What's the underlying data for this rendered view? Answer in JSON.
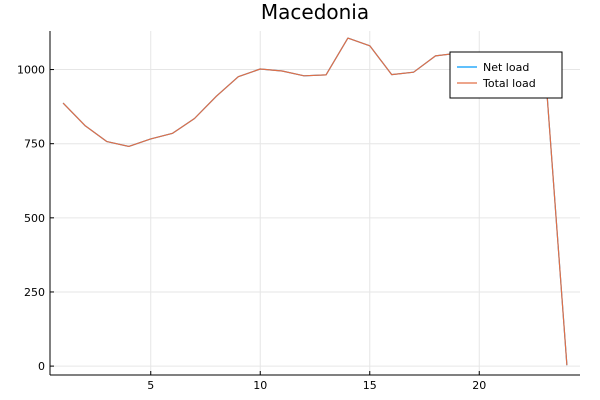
{
  "chart_data": {
    "type": "line",
    "title": "Macedonia",
    "xlabel": "",
    "ylabel": "",
    "xlim": [
      0.4,
      24.6
    ],
    "ylim": [
      -30,
      1130
    ],
    "xticks": [
      5,
      10,
      15,
      20
    ],
    "yticks": [
      0,
      250,
      500,
      750,
      1000
    ],
    "grid": true,
    "legend_position": "top-right",
    "x": [
      1,
      2,
      3,
      4,
      5,
      6,
      7,
      8,
      9,
      10,
      11,
      12,
      13,
      14,
      15,
      16,
      17,
      18,
      19,
      20,
      21,
      22,
      23,
      24
    ],
    "series": [
      {
        "name": "Net load",
        "color": "#009AFA",
        "values": [
          887,
          811,
          757,
          741,
          766,
          785,
          835,
          910,
          976,
          1002,
          995,
          979,
          982,
          1106,
          1080,
          983,
          991,
          1046,
          1055,
          1050,
          1040,
          1030,
          1010,
          3
        ]
      },
      {
        "name": "Total load",
        "color": "#E26F46",
        "values": [
          887,
          811,
          757,
          741,
          766,
          785,
          835,
          910,
          976,
          1002,
          995,
          979,
          982,
          1106,
          1080,
          983,
          991,
          1046,
          1055,
          1050,
          1040,
          1030,
          1010,
          3
        ]
      }
    ]
  }
}
